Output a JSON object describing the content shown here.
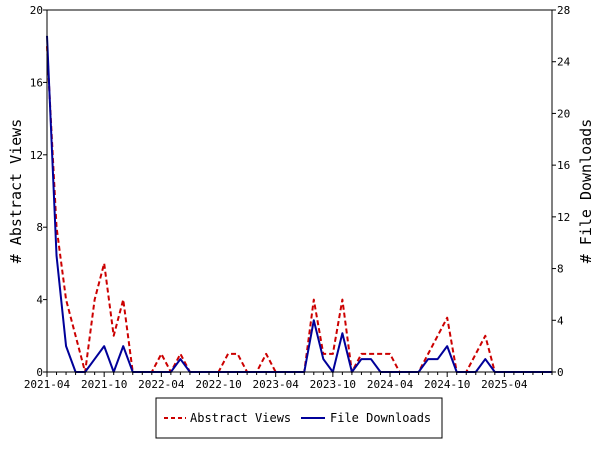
{
  "chart_data": {
    "type": "line",
    "title": "",
    "x_tick_labels": [
      "2021-04",
      "2021-10",
      "2022-04",
      "2022-10",
      "2023-04",
      "2023-10",
      "2024-04",
      "2024-10",
      "2025-04"
    ],
    "y_left": {
      "label": "# Abstract Views",
      "lim": [
        0,
        20
      ],
      "ticks": [
        0,
        4,
        8,
        12,
        16,
        20
      ]
    },
    "y_right": {
      "label": "# File Downloads",
      "lim": [
        0,
        28
      ],
      "ticks": [
        0,
        4,
        8,
        12,
        16,
        20,
        24,
        28
      ]
    },
    "x_count": 54,
    "x_tick_every": 6,
    "series": [
      {
        "name": "Abstract Views",
        "axis": "left",
        "color": "#cc0000",
        "dash": "dashed",
        "values": [
          18,
          8,
          4,
          2,
          0,
          4,
          6,
          2,
          4,
          0,
          0,
          0,
          1,
          0,
          1,
          0,
          0,
          0,
          0,
          1,
          1,
          0,
          0,
          1,
          0,
          0,
          0,
          0,
          4,
          1,
          1,
          4,
          0,
          1,
          1,
          1,
          1,
          0,
          0,
          0,
          1,
          2,
          3,
          0,
          0,
          1,
          2,
          0,
          0,
          0,
          0,
          0,
          0,
          0
        ]
      },
      {
        "name": "File Downloads",
        "axis": "right",
        "color": "#000099",
        "dash": "solid",
        "values": [
          26,
          9,
          2,
          0,
          0,
          1,
          2,
          0,
          2,
          0,
          0,
          0,
          0,
          0,
          1,
          0,
          0,
          0,
          0,
          0,
          0,
          0,
          0,
          0,
          0,
          0,
          0,
          0,
          4,
          1,
          0,
          3,
          0,
          1,
          1,
          0,
          0,
          0,
          0,
          0,
          1,
          1,
          2,
          0,
          0,
          0,
          1,
          0,
          0,
          0,
          0,
          0,
          0,
          0
        ]
      }
    ],
    "legend": {
      "position": "bottom-center"
    },
    "grid": false
  }
}
